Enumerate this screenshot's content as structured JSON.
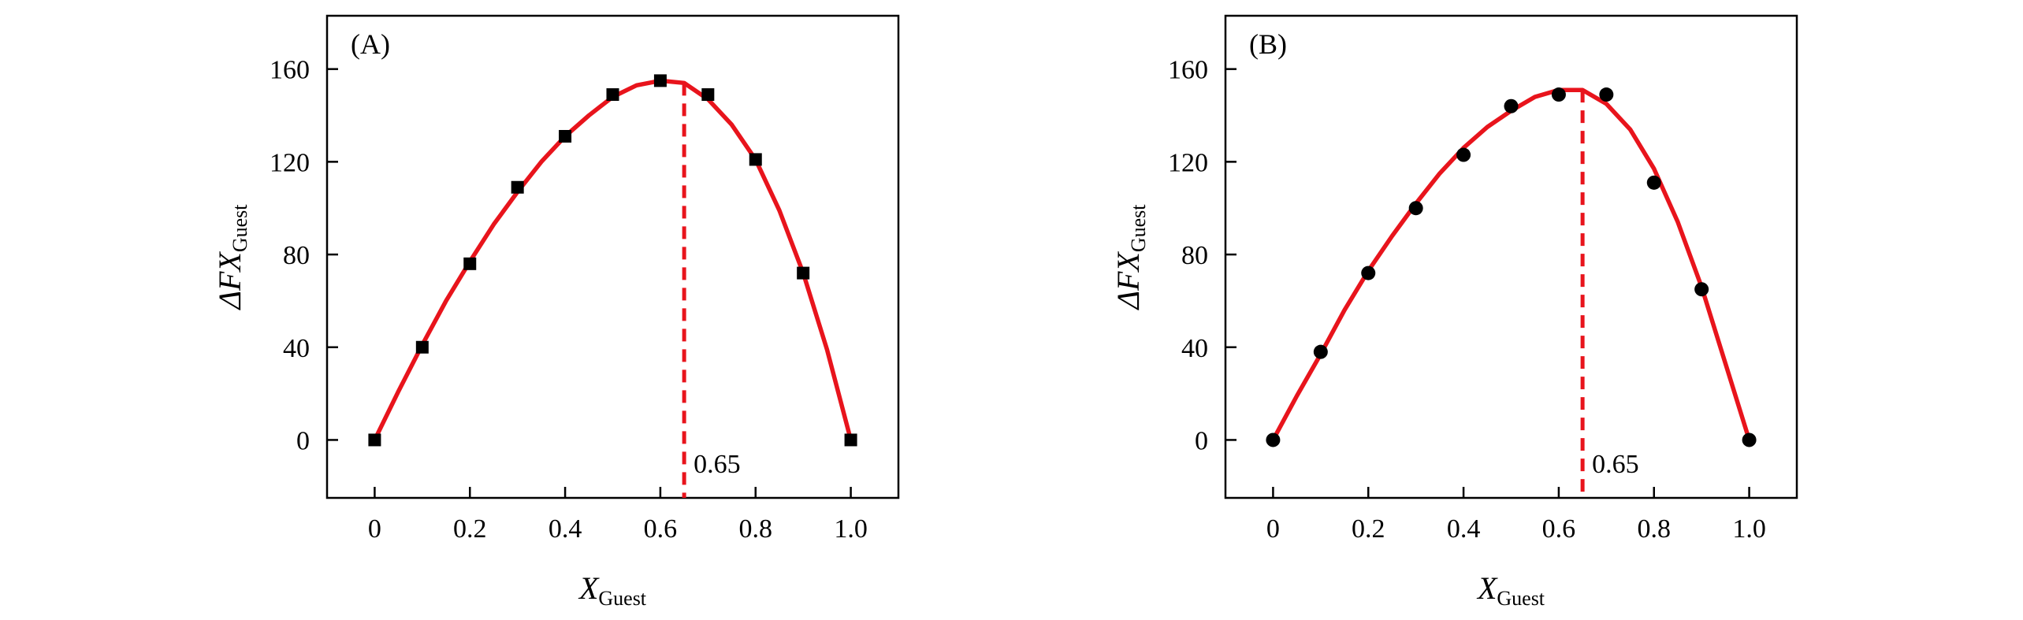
{
  "colors": {
    "fit_line": "#e8141c",
    "marker": "#000000",
    "axes": "#000000"
  },
  "chart_data": [
    {
      "type": "scatter",
      "panel_label": "(A)",
      "marker": "square",
      "xlabel": {
        "main": "X",
        "sub": "Guest"
      },
      "ylabel": {
        "main": "ΔFX",
        "sub": "Guest"
      },
      "xlim": [
        -0.1,
        1.1
      ],
      "ylim": [
        -25,
        183
      ],
      "xticks": [
        0,
        0.2,
        0.4,
        0.6,
        0.8,
        1.0
      ],
      "xtick_labels": [
        "0",
        "0.2",
        "0.4",
        "0.6",
        "0.8",
        "1.0"
      ],
      "yticks": [
        0,
        40,
        80,
        120,
        160
      ],
      "ytick_labels": [
        "0",
        "40",
        "80",
        "120",
        "160"
      ],
      "points": {
        "x": [
          0,
          0.1,
          0.2,
          0.3,
          0.4,
          0.5,
          0.6,
          0.7,
          0.8,
          0.9,
          1.0
        ],
        "y": [
          0,
          40,
          76,
          109,
          131,
          149,
          155,
          149,
          121,
          72,
          0
        ]
      },
      "fit_curve": {
        "x": [
          0,
          0.05,
          0.1,
          0.15,
          0.2,
          0.25,
          0.3,
          0.35,
          0.4,
          0.45,
          0.5,
          0.55,
          0.6,
          0.65,
          0.7,
          0.75,
          0.8,
          0.85,
          0.9,
          0.95,
          1.0
        ],
        "y": [
          0,
          21,
          41,
          60,
          77,
          93,
          107,
          120,
          131,
          140,
          148,
          153,
          155,
          154,
          147,
          136,
          121,
          99,
          72,
          39,
          0
        ]
      },
      "vertical_marker": {
        "x": 0.65,
        "label": "0.65"
      }
    },
    {
      "type": "scatter",
      "panel_label": "(B)",
      "marker": "circle",
      "xlabel": {
        "main": "X",
        "sub": "Guest"
      },
      "ylabel": {
        "main": "ΔFX",
        "sub": "Guest"
      },
      "xlim": [
        -0.1,
        1.1
      ],
      "ylim": [
        -25,
        183
      ],
      "xticks": [
        0,
        0.2,
        0.4,
        0.6,
        0.8,
        1.0
      ],
      "xtick_labels": [
        "0",
        "0.2",
        "0.4",
        "0.6",
        "0.8",
        "1.0"
      ],
      "yticks": [
        0,
        40,
        80,
        120,
        160
      ],
      "ytick_labels": [
        "0",
        "40",
        "80",
        "120",
        "160"
      ],
      "points": {
        "x": [
          0,
          0.1,
          0.2,
          0.3,
          0.4,
          0.5,
          0.6,
          0.7,
          0.8,
          0.9,
          1.0
        ],
        "y": [
          0,
          38,
          72,
          100,
          123,
          144,
          149,
          149,
          111,
          65,
          0
        ]
      },
      "fit_curve": {
        "x": [
          0,
          0.05,
          0.1,
          0.15,
          0.2,
          0.25,
          0.3,
          0.35,
          0.4,
          0.45,
          0.5,
          0.55,
          0.6,
          0.65,
          0.7,
          0.75,
          0.8,
          0.85,
          0.9,
          0.95,
          1.0
        ],
        "y": [
          0,
          19,
          37,
          56,
          73,
          88,
          102,
          115,
          126,
          135,
          142,
          148,
          151,
          151,
          145,
          134,
          117,
          94,
          66,
          33,
          0
        ]
      },
      "vertical_marker": {
        "x": 0.65,
        "label": "0.65"
      }
    }
  ]
}
